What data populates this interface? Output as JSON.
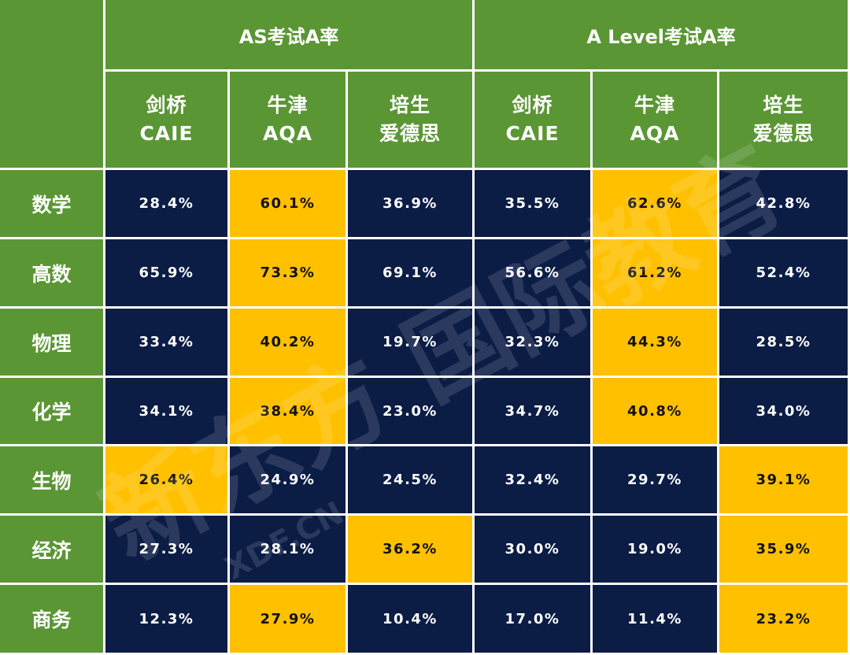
{
  "table": {
    "groups": [
      "AS考试A率",
      "A Level考试A率"
    ],
    "columns": [
      {
        "name": "剑桥",
        "code": "CAIE"
      },
      {
        "name": "牛津",
        "code": "AQA"
      },
      {
        "name": "培生",
        "code": "爱德思"
      },
      {
        "name": "剑桥",
        "code": "CAIE"
      },
      {
        "name": "牛津",
        "code": "AQA"
      },
      {
        "name": "培生",
        "code": "爱德思"
      }
    ],
    "rows": [
      {
        "subject": "数学",
        "values": [
          "28.4%",
          "60.1%",
          "36.9%",
          "35.5%",
          "62.6%",
          "42.8%"
        ],
        "colors": [
          "#0b1c45",
          "#ffc000",
          "#0b1c45",
          "#0b1c45",
          "#ffc000",
          "#0b1c45"
        ]
      },
      {
        "subject": "高数",
        "values": [
          "65.9%",
          "73.3%",
          "69.1%",
          "56.6%",
          "61.2%",
          "52.4%"
        ],
        "colors": [
          "#0b1c45",
          "#ffc000",
          "#0b1c45",
          "#0b1c45",
          "#ffc000",
          "#0b1c45"
        ]
      },
      {
        "subject": "物理",
        "values": [
          "33.4%",
          "40.2%",
          "19.7%",
          "32.3%",
          "44.3%",
          "28.5%"
        ],
        "colors": [
          "#0b1c45",
          "#ffc000",
          "#0b1c45",
          "#0b1c45",
          "#ffc000",
          "#0b1c45"
        ]
      },
      {
        "subject": "化学",
        "values": [
          "34.1%",
          "38.4%",
          "23.0%",
          "34.7%",
          "40.8%",
          "34.0%"
        ],
        "colors": [
          "#0b1c45",
          "#ffc000",
          "#0b1c45",
          "#0b1c45",
          "#ffc000",
          "#0b1c45"
        ]
      },
      {
        "subject": "生物",
        "values": [
          "26.4%",
          "24.9%",
          "24.5%",
          "32.4%",
          "29.7%",
          "39.1%"
        ],
        "colors": [
          "#ffc000",
          "#0b1c45",
          "#0b1c45",
          "#0b1c45",
          "#0b1c45",
          "#ffc000"
        ]
      },
      {
        "subject": "经济",
        "values": [
          "27.3%",
          "28.1%",
          "36.2%",
          "30.0%",
          "19.0%",
          "35.9%"
        ],
        "colors": [
          "#0b1c45",
          "#0b1c45",
          "#ffc000",
          "#0b1c45",
          "#0b1c45",
          "#ffc000"
        ]
      },
      {
        "subject": "商务",
        "values": [
          "12.3%",
          "27.9%",
          "10.4%",
          "17.0%",
          "11.4%",
          "23.2%"
        ],
        "colors": [
          "#0b1c45",
          "#ffc000",
          "#0b1c45",
          "#0b1c45",
          "#0b1c45",
          "#ffc000"
        ]
      }
    ],
    "watermark": {
      "brand": "新东方 国际教育",
      "site": "XDF.CN"
    }
  }
}
